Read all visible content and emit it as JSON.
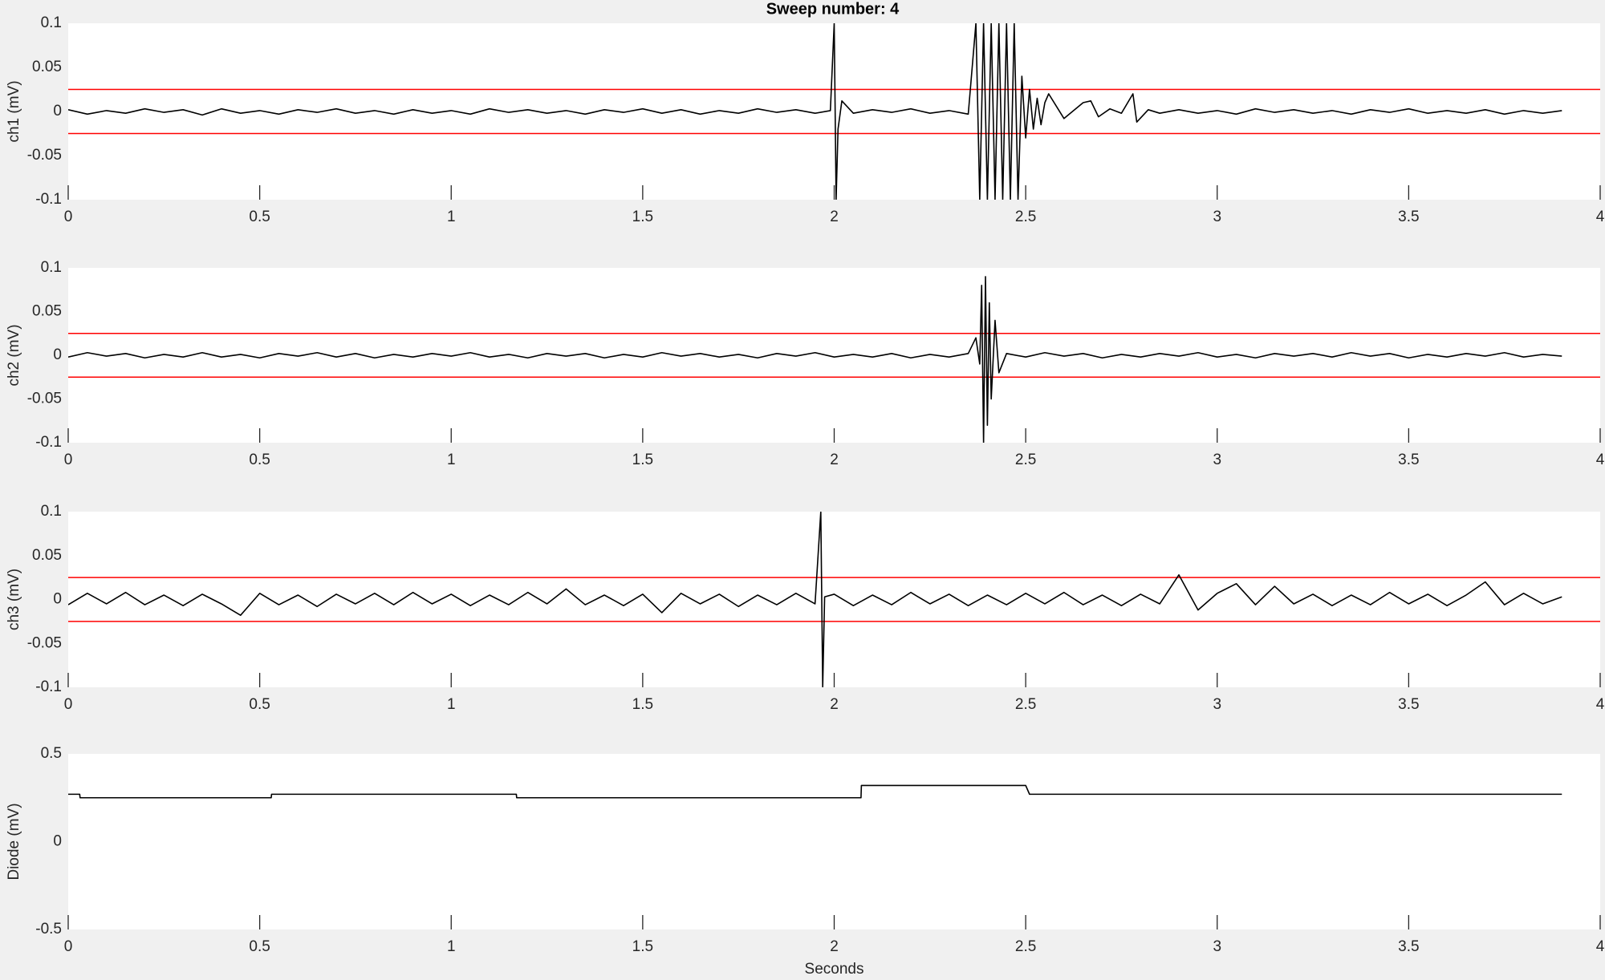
{
  "chart_data": [
    {
      "type": "line",
      "title": "Sweep number: 4",
      "ylabel": "ch1 (mV)",
      "xlim": [
        0,
        4
      ],
      "xticks": [
        0,
        0.5,
        1,
        1.5,
        2,
        2.5,
        3,
        3.5,
        4
      ],
      "ylim": [
        -0.1,
        0.1
      ],
      "yticks": [
        -0.1,
        -0.05,
        0,
        0.05,
        0.1
      ],
      "thresholds": [
        0.025,
        -0.025
      ],
      "threshold_color": "#ff0000",
      "series": [
        {
          "color": "#000000",
          "x": [
            0,
            0.05,
            0.1,
            0.15,
            0.2,
            0.25,
            0.3,
            0.35,
            0.4,
            0.45,
            0.5,
            0.55,
            0.6,
            0.65,
            0.7,
            0.75,
            0.8,
            0.85,
            0.9,
            0.95,
            1,
            1.05,
            1.1,
            1.15,
            1.2,
            1.25,
            1.3,
            1.35,
            1.4,
            1.45,
            1.5,
            1.55,
            1.6,
            1.65,
            1.7,
            1.75,
            1.8,
            1.85,
            1.9,
            1.95,
            1.99,
            2,
            2.005,
            2.01,
            2.02,
            2.05,
            2.1,
            2.15,
            2.2,
            2.25,
            2.3,
            2.35,
            2.37,
            2.38,
            2.39,
            2.4,
            2.41,
            2.42,
            2.43,
            2.44,
            2.45,
            2.46,
            2.47,
            2.48,
            2.49,
            2.5,
            2.51,
            2.52,
            2.53,
            2.54,
            2.55,
            2.56,
            2.6,
            2.65,
            2.67,
            2.69,
            2.72,
            2.75,
            2.78,
            2.79,
            2.82,
            2.85,
            2.9,
            2.95,
            3,
            3.05,
            3.1,
            3.15,
            3.2,
            3.25,
            3.3,
            3.35,
            3.4,
            3.45,
            3.5,
            3.55,
            3.6,
            3.65,
            3.7,
            3.75,
            3.8,
            3.85,
            3.9
          ],
          "values": [
            0.002,
            -0.003,
            0.001,
            -0.002,
            0.003,
            -0.001,
            0.002,
            -0.004,
            0.003,
            -0.002,
            0.001,
            -0.003,
            0.002,
            -0.001,
            0.003,
            -0.002,
            0.001,
            -0.003,
            0.002,
            -0.002,
            0.001,
            -0.003,
            0.003,
            -0.001,
            0.002,
            -0.002,
            0.001,
            -0.003,
            0.002,
            -0.001,
            0.003,
            -0.002,
            0.002,
            -0.003,
            0.001,
            -0.002,
            0.003,
            -0.001,
            0.002,
            -0.002,
            0.001,
            0.1,
            -0.1,
            -0.02,
            0.012,
            -0.002,
            0.002,
            -0.001,
            0.003,
            -0.002,
            0.001,
            -0.003,
            0.1,
            -0.1,
            0.1,
            -0.1,
            0.1,
            -0.1,
            0.1,
            -0.1,
            0.1,
            -0.1,
            0.1,
            -0.1,
            0.04,
            -0.03,
            0.025,
            -0.02,
            0.015,
            -0.015,
            0.01,
            0.02,
            -0.008,
            0.01,
            0.012,
            -0.006,
            0.003,
            -0.002,
            0.02,
            -0.012,
            0.002,
            -0.002,
            0.002,
            -0.002,
            0.001,
            -0.003,
            0.003,
            -0.001,
            0.002,
            -0.002,
            0.001,
            -0.003,
            0.002,
            -0.001,
            0.003,
            -0.002,
            0.001,
            -0.002,
            0.002,
            -0.003,
            0.001,
            -0.002,
            0.001
          ]
        }
      ]
    },
    {
      "type": "line",
      "ylabel": "ch2 (mV)",
      "xlim": [
        0,
        4
      ],
      "xticks": [
        0,
        0.5,
        1,
        1.5,
        2,
        2.5,
        3,
        3.5,
        4
      ],
      "ylim": [
        -0.1,
        0.1
      ],
      "yticks": [
        -0.1,
        -0.05,
        0,
        0.05,
        0.1
      ],
      "thresholds": [
        0.025,
        -0.025
      ],
      "threshold_color": "#ff0000",
      "series": [
        {
          "color": "#000000",
          "x": [
            0,
            0.05,
            0.1,
            0.15,
            0.2,
            0.25,
            0.3,
            0.35,
            0.4,
            0.45,
            0.5,
            0.55,
            0.6,
            0.65,
            0.7,
            0.75,
            0.8,
            0.85,
            0.9,
            0.95,
            1,
            1.05,
            1.1,
            1.15,
            1.2,
            1.25,
            1.3,
            1.35,
            1.4,
            1.45,
            1.5,
            1.55,
            1.6,
            1.65,
            1.7,
            1.75,
            1.8,
            1.85,
            1.9,
            1.95,
            2,
            2.05,
            2.1,
            2.15,
            2.2,
            2.25,
            2.3,
            2.35,
            2.37,
            2.38,
            2.385,
            2.39,
            2.395,
            2.4,
            2.405,
            2.41,
            2.42,
            2.43,
            2.45,
            2.5,
            2.55,
            2.6,
            2.65,
            2.7,
            2.75,
            2.8,
            2.85,
            2.9,
            2.95,
            3,
            3.05,
            3.1,
            3.15,
            3.2,
            3.25,
            3.3,
            3.35,
            3.4,
            3.45,
            3.5,
            3.55,
            3.6,
            3.65,
            3.7,
            3.75,
            3.8,
            3.85,
            3.9
          ],
          "values": [
            -0.002,
            0.003,
            -0.001,
            0.002,
            -0.003,
            0.001,
            -0.002,
            0.003,
            -0.002,
            0.001,
            -0.003,
            0.002,
            -0.001,
            0.003,
            -0.002,
            0.002,
            -0.003,
            0.001,
            -0.002,
            0.002,
            -0.001,
            0.003,
            -0.002,
            0.001,
            -0.003,
            0.002,
            -0.001,
            0.002,
            -0.003,
            0.001,
            -0.002,
            0.003,
            -0.001,
            0.002,
            -0.002,
            0.001,
            -0.003,
            0.002,
            -0.001,
            0.003,
            -0.002,
            0.001,
            -0.002,
            0.002,
            -0.003,
            0.001,
            -0.002,
            0.002,
            0.02,
            -0.01,
            0.08,
            -0.1,
            0.09,
            -0.08,
            0.06,
            -0.05,
            0.04,
            -0.02,
            0.002,
            -0.002,
            0.003,
            -0.001,
            0.002,
            -0.003,
            0.001,
            -0.002,
            0.002,
            -0.001,
            0.003,
            -0.002,
            0.001,
            -0.003,
            0.002,
            -0.001,
            0.002,
            -0.002,
            0.003,
            -0.001,
            0.002,
            -0.003,
            0.001,
            -0.002,
            0.002,
            -0.001,
            0.003,
            -0.002,
            0.001,
            -0.001
          ]
        }
      ]
    },
    {
      "type": "line",
      "ylabel": "ch3 (mV)",
      "xlim": [
        0,
        4
      ],
      "xticks": [
        0,
        0.5,
        1,
        1.5,
        2,
        2.5,
        3,
        3.5,
        4
      ],
      "ylim": [
        -0.1,
        0.1
      ],
      "yticks": [
        -0.1,
        -0.05,
        0,
        0.05,
        0.1
      ],
      "thresholds": [
        0.025,
        -0.025
      ],
      "threshold_color": "#ff0000",
      "series": [
        {
          "color": "#000000",
          "x": [
            0,
            0.05,
            0.1,
            0.15,
            0.2,
            0.25,
            0.3,
            0.35,
            0.4,
            0.45,
            0.5,
            0.55,
            0.6,
            0.65,
            0.7,
            0.75,
            0.8,
            0.85,
            0.9,
            0.95,
            1,
            1.05,
            1.1,
            1.15,
            1.2,
            1.25,
            1.3,
            1.35,
            1.4,
            1.45,
            1.5,
            1.55,
            1.6,
            1.65,
            1.7,
            1.75,
            1.8,
            1.85,
            1.9,
            1.95,
            1.965,
            1.97,
            1.975,
            2,
            2.05,
            2.1,
            2.15,
            2.2,
            2.25,
            2.3,
            2.35,
            2.4,
            2.45,
            2.5,
            2.55,
            2.6,
            2.65,
            2.7,
            2.75,
            2.8,
            2.85,
            2.9,
            2.95,
            3,
            3.05,
            3.1,
            3.15,
            3.2,
            3.25,
            3.3,
            3.35,
            3.4,
            3.45,
            3.5,
            3.55,
            3.6,
            3.65,
            3.7,
            3.75,
            3.8,
            3.85,
            3.9
          ],
          "values": [
            -0.006,
            0.007,
            -0.005,
            0.008,
            -0.006,
            0.005,
            -0.007,
            0.006,
            -0.005,
            -0.018,
            0.007,
            -0.006,
            0.005,
            -0.008,
            0.006,
            -0.005,
            0.007,
            -0.006,
            0.008,
            -0.005,
            0.006,
            -0.007,
            0.005,
            -0.006,
            0.008,
            -0.005,
            0.012,
            -0.006,
            0.005,
            -0.007,
            0.006,
            -0.015,
            0.007,
            -0.005,
            0.006,
            -0.008,
            0.005,
            -0.006,
            0.007,
            -0.005,
            0.1,
            -0.1,
            0.003,
            0.006,
            -0.007,
            0.005,
            -0.006,
            0.008,
            -0.005,
            0.006,
            -0.007,
            0.005,
            -0.006,
            0.007,
            -0.005,
            0.008,
            -0.006,
            0.005,
            -0.007,
            0.006,
            -0.005,
            0.028,
            -0.012,
            0.007,
            0.018,
            -0.006,
            0.015,
            -0.005,
            0.006,
            -0.007,
            0.005,
            -0.006,
            0.008,
            -0.005,
            0.006,
            -0.007,
            0.005,
            0.02,
            -0.006,
            0.007,
            -0.005,
            0.003
          ]
        }
      ]
    },
    {
      "type": "line",
      "ylabel": "Diode (mV)",
      "xlabel": "Seconds",
      "xlim": [
        0,
        4
      ],
      "xticks": [
        0,
        0.5,
        1,
        1.5,
        2,
        2.5,
        3,
        3.5,
        4
      ],
      "ylim": [
        -0.5,
        0.5
      ],
      "yticks": [
        -0.5,
        0,
        0.5
      ],
      "series": [
        {
          "color": "#000000",
          "x": [
            0,
            0.03,
            0.031,
            0.53,
            0.531,
            1.17,
            1.171,
            2.07,
            2.071,
            2.5,
            2.51,
            3.9
          ],
          "values": [
            0.27,
            0.27,
            0.25,
            0.25,
            0.27,
            0.27,
            0.25,
            0.25,
            0.32,
            0.32,
            0.27,
            0.27
          ]
        }
      ]
    }
  ]
}
